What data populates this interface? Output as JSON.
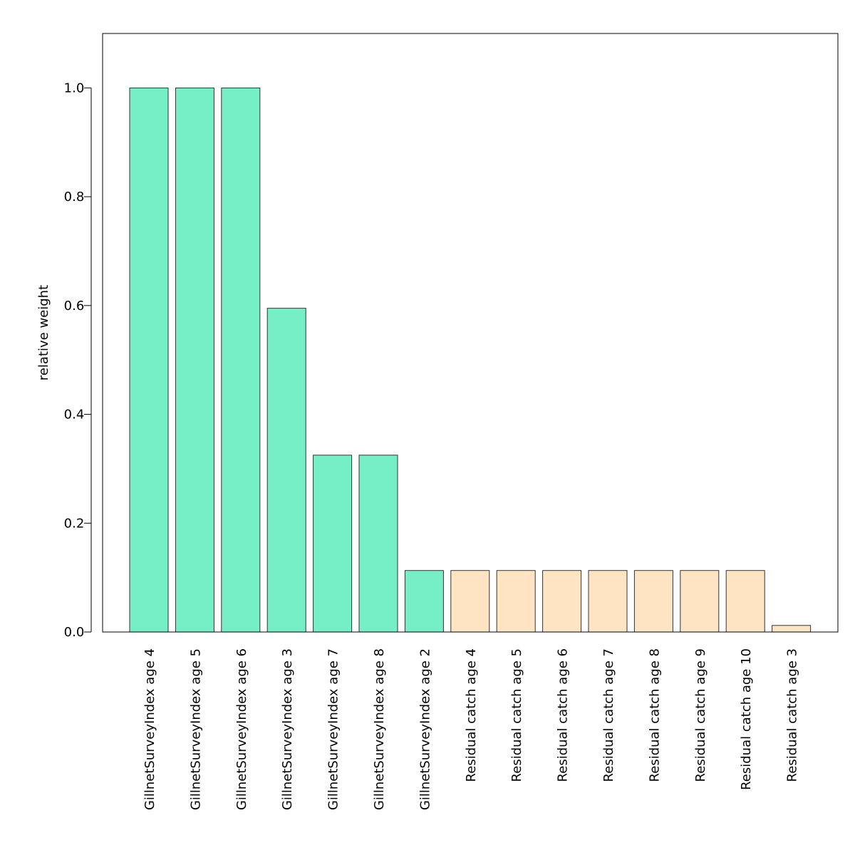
{
  "chart_data": {
    "type": "bar",
    "title": "",
    "xlabel": "",
    "ylabel": "relative weight",
    "ylim": [
      0,
      1.1
    ],
    "yticks": [
      "0.0",
      "0.2",
      "0.4",
      "0.6",
      "0.8",
      "1.0"
    ],
    "categories": [
      "GillnetSurveyIndex age 4",
      "GillnetSurveyIndex age 5",
      "GillnetSurveyIndex age 6",
      "GillnetSurveyIndex age 3",
      "GillnetSurveyIndex age 7",
      "GillnetSurveyIndex age 8",
      "GillnetSurveyIndex age 2",
      "Residual catch age 4",
      "Residual catch age 5",
      "Residual catch age 6",
      "Residual catch age 7",
      "Residual catch age 8",
      "Residual catch age 9",
      "Residual catch age 10",
      "Residual catch age 3"
    ],
    "values": [
      1.0,
      1.0,
      1.0,
      0.595,
      0.325,
      0.325,
      0.113,
      0.113,
      0.113,
      0.113,
      0.113,
      0.113,
      0.113,
      0.113,
      0.012
    ],
    "bar_colors": [
      "#76EEC6",
      "#76EEC6",
      "#76EEC6",
      "#76EEC6",
      "#76EEC6",
      "#76EEC6",
      "#76EEC6",
      "#FFE4C4",
      "#FFE4C4",
      "#FFE4C4",
      "#FFE4C4",
      "#FFE4C4",
      "#FFE4C4",
      "#FFE4C4",
      "#FFE4C4"
    ],
    "grid": false,
    "legend": "none"
  }
}
